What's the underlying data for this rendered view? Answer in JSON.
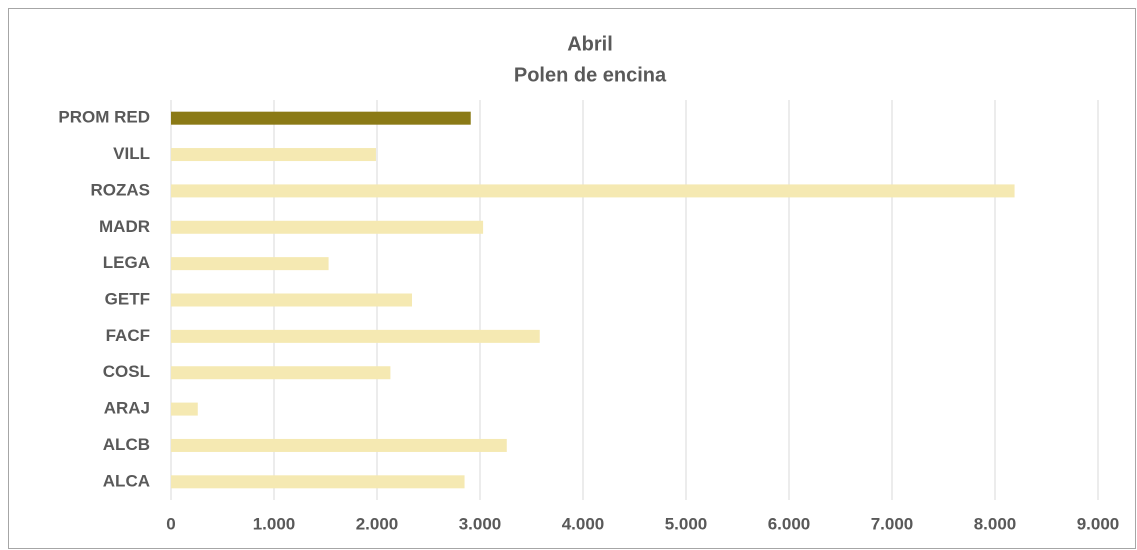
{
  "chart_data": {
    "type": "bar",
    "orientation": "horizontal",
    "title": "Abril",
    "subtitle": "Polen de encina",
    "categories": [
      "PROM RED",
      "VILL",
      "ROZAS",
      "MADR",
      "LEGA",
      "GETF",
      "FACF",
      "COSL",
      "ARAJ",
      "ALCB",
      "ALCA"
    ],
    "values": [
      2910,
      1990,
      8190,
      3030,
      1530,
      2340,
      3580,
      2130,
      260,
      3260,
      2850
    ],
    "colors": [
      "#8b7a16",
      "#f5e9b2",
      "#f5e9b2",
      "#f5e9b2",
      "#f5e9b2",
      "#f5e9b2",
      "#f5e9b2",
      "#f5e9b2",
      "#f5e9b2",
      "#f5e9b2",
      "#f5e9b2"
    ],
    "xlim": [
      0,
      9000
    ],
    "xticks": [
      0,
      {
        "value": 1000,
        "label": "1.000"
      },
      {
        "value": 2000,
        "label": "2.000"
      },
      {
        "value": 3000,
        "label": "3.000"
      },
      {
        "value": 4000,
        "label": "4.000"
      },
      {
        "value": 5000,
        "label": "5.000"
      },
      {
        "value": 6000,
        "label": "6.000"
      },
      {
        "value": 7000,
        "label": "7.000"
      },
      {
        "value": 8000,
        "label": "8.000"
      },
      {
        "value": 9000,
        "label": "9.000"
      }
    ],
    "grid": true
  }
}
